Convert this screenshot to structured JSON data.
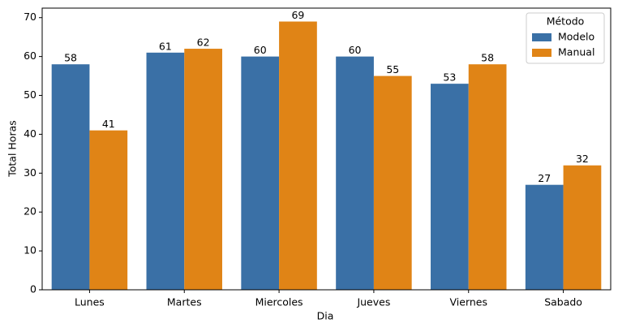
{
  "chart_data": {
    "type": "bar",
    "x_label": "Dia",
    "y_label": "Total Horas",
    "categories": [
      "Lunes",
      "Martes",
      "Miercoles",
      "Jueves",
      "Viernes",
      "Sabado"
    ],
    "series": [
      {
        "name": "Modelo",
        "color": "#3a70a6",
        "values": [
          58,
          61,
          60,
          60,
          53,
          27
        ]
      },
      {
        "name": "Manual",
        "color": "#e08416",
        "values": [
          41,
          62,
          69,
          55,
          58,
          32
        ]
      }
    ],
    "legend_title": "Método",
    "legend": "upper right",
    "ylim": [
      0,
      72.45
    ],
    "yticks": [
      0,
      10,
      20,
      30,
      40,
      50,
      60,
      70
    ]
  }
}
